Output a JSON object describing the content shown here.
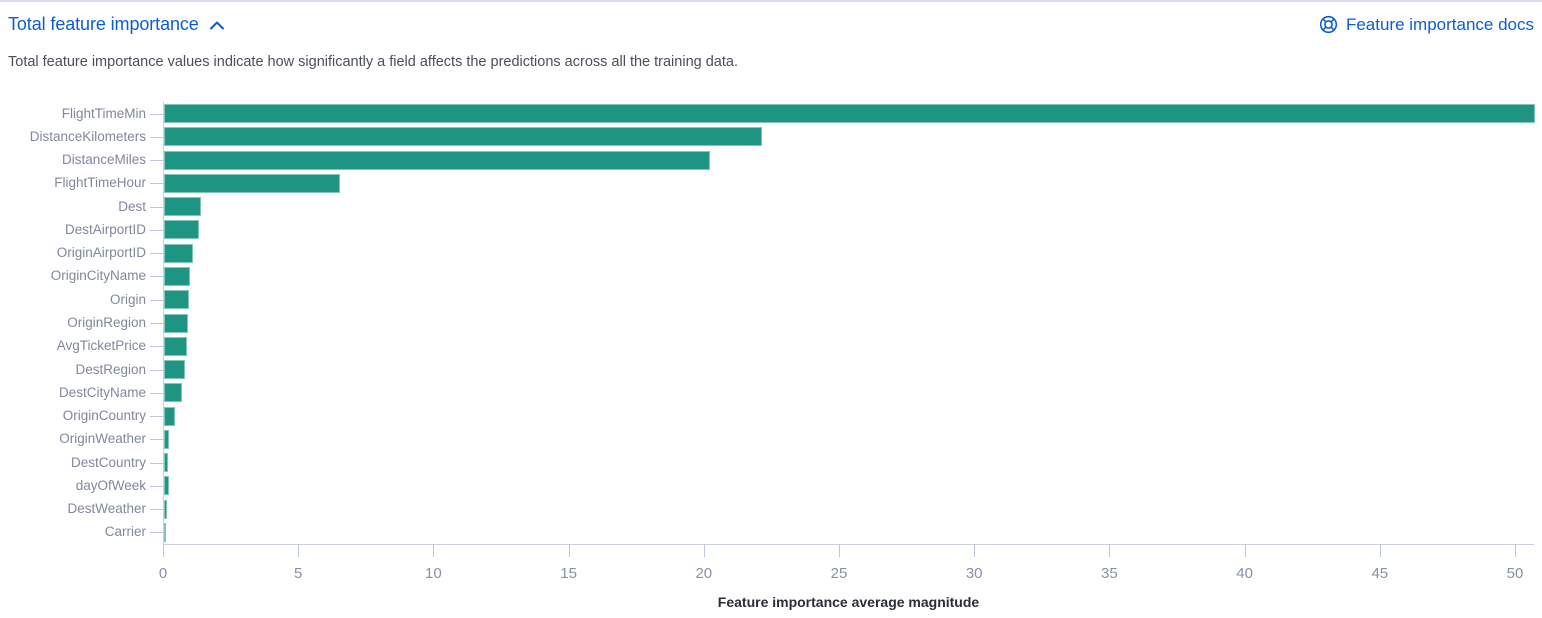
{
  "panel": {
    "title": "Total feature importance",
    "description": "Total feature importance values indicate how significantly a field affects the predictions across all the training data.",
    "docs_link_label": "Feature importance docs"
  },
  "icons": {
    "collapse": "chevron-up-icon",
    "docs": "life-ring-help-icon"
  },
  "colors": {
    "bar_fill": "#1e9583",
    "link_blue": "#0c5ed0",
    "axis_line": "#c9cfdc",
    "tick_label": "#8790a4",
    "category_label": "#80889c",
    "axis_title_text": "#2a2e35",
    "description_text": "#4a4f5c",
    "top_border": "#d7dce8"
  },
  "chart_data": {
    "type": "bar",
    "orientation": "horizontal",
    "title": "",
    "xlabel": "Feature importance average magnitude",
    "ylabel": "",
    "xlim": [
      0,
      50.7
    ],
    "x_ticks": [
      0,
      5,
      10,
      15,
      20,
      25,
      30,
      35,
      40,
      45,
      50
    ],
    "grid": false,
    "legend": "none",
    "categories": [
      "FlightTimeMin",
      "DistanceKilometers",
      "DistanceMiles",
      "FlightTimeHour",
      "Dest",
      "DestAirportID",
      "OriginAirportID",
      "OriginCityName",
      "Origin",
      "OriginRegion",
      "AvgTicketPrice",
      "DestRegion",
      "DestCityName",
      "OriginCountry",
      "OriginWeather",
      "DestCountry",
      "dayOfWeek",
      "DestWeather",
      "Carrier"
    ],
    "values": [
      50.7,
      22.1,
      20.2,
      6.5,
      1.35,
      1.3,
      1.08,
      0.97,
      0.94,
      0.88,
      0.85,
      0.78,
      0.65,
      0.42,
      0.17,
      0.14,
      0.17,
      0.12,
      0.05
    ]
  }
}
